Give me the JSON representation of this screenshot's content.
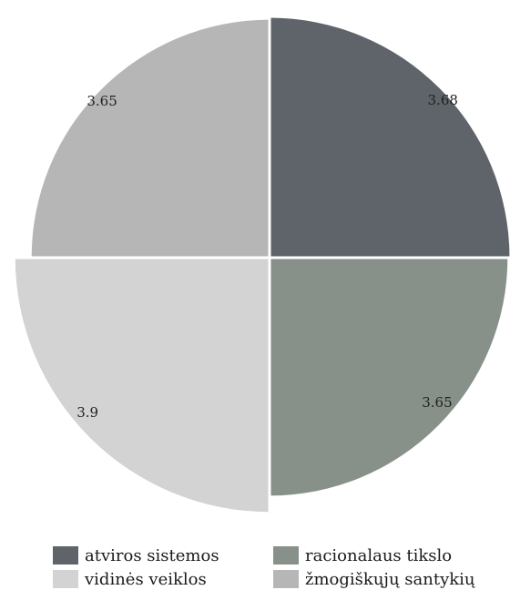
{
  "chart_data": {
    "type": "pie",
    "variant": "polar-area",
    "slices": [
      {
        "name": "atviros sistemos",
        "value": 3.68,
        "label": "3.68",
        "color": "#5e646a"
      },
      {
        "name": "racionalaus tikslo",
        "value": 3.65,
        "label": "3.65",
        "color": "#879089"
      },
      {
        "name": "vidinės veiklos",
        "value": 3.9,
        "label": "3.9",
        "color": "#d3d3d3"
      },
      {
        "name": "žmogiškųjų santykių",
        "value": 3.65,
        "label": "3.65",
        "color": "#b6b6b6"
      }
    ],
    "legend_position": "bottom"
  }
}
